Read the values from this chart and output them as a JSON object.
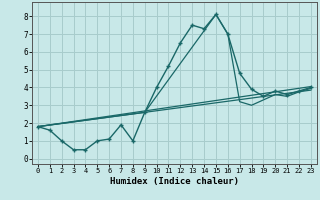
{
  "xlabel": "Humidex (Indice chaleur)",
  "background_color": "#c8e8e8",
  "grid_color": "#a8cccc",
  "line_color": "#1a6868",
  "xlim": [
    -0.5,
    23.5
  ],
  "ylim": [
    -0.3,
    8.8
  ],
  "xticks": [
    0,
    1,
    2,
    3,
    4,
    5,
    6,
    7,
    8,
    9,
    10,
    11,
    12,
    13,
    14,
    15,
    16,
    17,
    18,
    19,
    20,
    21,
    22,
    23
  ],
  "yticks": [
    0,
    1,
    2,
    3,
    4,
    5,
    6,
    7,
    8
  ],
  "main_x": [
    0,
    1,
    2,
    3,
    4,
    5,
    6,
    7,
    8,
    9,
    10,
    11,
    12,
    13,
    14,
    15,
    16,
    17,
    18,
    19,
    20,
    21,
    22,
    23
  ],
  "main_y": [
    1.8,
    1.6,
    1.0,
    0.5,
    0.5,
    1.0,
    1.1,
    1.9,
    1.0,
    2.6,
    4.0,
    5.2,
    6.5,
    7.5,
    7.3,
    8.1,
    7.0,
    4.8,
    3.9,
    3.5,
    3.8,
    3.6,
    3.8,
    4.0
  ],
  "trend1_x": [
    0,
    9,
    15,
    16,
    17,
    18,
    19,
    20,
    21,
    22,
    23
  ],
  "trend1_y": [
    1.8,
    2.6,
    8.1,
    7.0,
    3.2,
    3.0,
    3.3,
    3.6,
    3.5,
    3.75,
    3.95
  ],
  "trend2_x": [
    0,
    23
  ],
  "trend2_y": [
    1.8,
    3.85
  ],
  "trend3_x": [
    0,
    23
  ],
  "trend3_y": [
    1.8,
    4.05
  ]
}
